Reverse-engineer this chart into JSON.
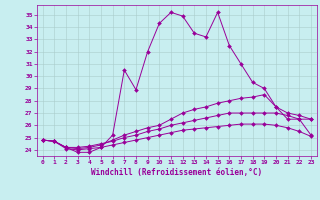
{
  "xlabel": "Windchill (Refroidissement éolien,°C)",
  "background_color": "#c8eef0",
  "line_color": "#990099",
  "grid_color": "#aacccc",
  "xlim": [
    -0.5,
    23.5
  ],
  "ylim": [
    23.5,
    35.8
  ],
  "yticks": [
    24,
    25,
    26,
    27,
    28,
    29,
    30,
    31,
    32,
    33,
    34,
    35
  ],
  "xticks": [
    0,
    1,
    2,
    3,
    4,
    5,
    6,
    7,
    8,
    9,
    10,
    11,
    12,
    13,
    14,
    15,
    16,
    17,
    18,
    19,
    20,
    21,
    22,
    23
  ],
  "series": [
    {
      "x": [
        0,
        1,
        2,
        3,
        4,
        5,
        6,
        7,
        8,
        9,
        10,
        11,
        12,
        13,
        14,
        15,
        16,
        17,
        18,
        19,
        20,
        21,
        22,
        23
      ],
      "y": [
        24.8,
        24.7,
        24.2,
        23.8,
        23.8,
        24.2,
        25.2,
        30.5,
        28.9,
        32.0,
        34.3,
        35.2,
        34.9,
        33.5,
        33.2,
        35.2,
        32.5,
        31.0,
        29.5,
        29.0,
        27.5,
        26.5,
        26.5,
        26.5
      ]
    },
    {
      "x": [
        0,
        1,
        2,
        3,
        4,
        5,
        6,
        7,
        8,
        9,
        10,
        11,
        12,
        13,
        14,
        15,
        16,
        17,
        18,
        19,
        20,
        21,
        22,
        23
      ],
      "y": [
        24.8,
        24.7,
        24.2,
        24.1,
        24.2,
        24.4,
        24.8,
        25.2,
        25.5,
        25.8,
        26.0,
        26.5,
        27.0,
        27.3,
        27.5,
        27.8,
        28.0,
        28.2,
        28.3,
        28.5,
        27.5,
        27.0,
        26.8,
        26.5
      ]
    },
    {
      "x": [
        0,
        1,
        2,
        3,
        4,
        5,
        6,
        7,
        8,
        9,
        10,
        11,
        12,
        13,
        14,
        15,
        16,
        17,
        18,
        19,
        20,
        21,
        22,
        23
      ],
      "y": [
        24.8,
        24.7,
        24.2,
        24.2,
        24.3,
        24.5,
        24.7,
        25.0,
        25.2,
        25.5,
        25.7,
        26.0,
        26.2,
        26.4,
        26.6,
        26.8,
        27.0,
        27.0,
        27.0,
        27.0,
        27.0,
        26.8,
        26.5,
        25.2
      ]
    },
    {
      "x": [
        0,
        1,
        2,
        3,
        4,
        5,
        6,
        7,
        8,
        9,
        10,
        11,
        12,
        13,
        14,
        15,
        16,
        17,
        18,
        19,
        20,
        21,
        22,
        23
      ],
      "y": [
        24.8,
        24.7,
        24.1,
        24.0,
        24.1,
        24.2,
        24.4,
        24.6,
        24.8,
        25.0,
        25.2,
        25.4,
        25.6,
        25.7,
        25.8,
        25.9,
        26.0,
        26.1,
        26.1,
        26.1,
        26.0,
        25.8,
        25.5,
        25.1
      ]
    }
  ]
}
